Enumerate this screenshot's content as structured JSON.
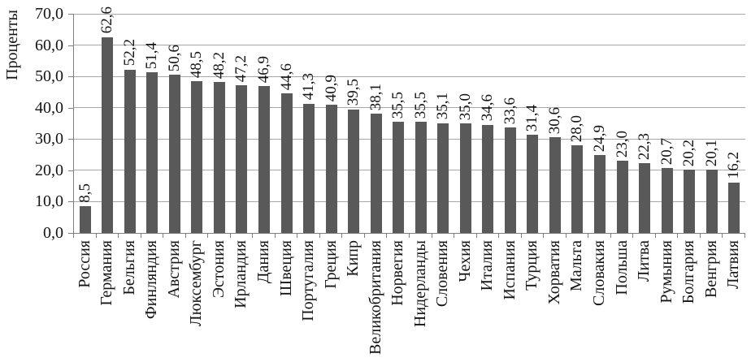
{
  "chart_data": {
    "type": "bar",
    "title": "",
    "ylabel": "Проценты",
    "ylim": [
      0,
      70
    ],
    "grid": true,
    "legend": false,
    "y_tick_labels": [
      "0,0",
      "10,0",
      "20,0",
      "30,0",
      "40,0",
      "50,0",
      "60,0",
      "70,0"
    ],
    "categories": [
      "Россия",
      "Германия",
      "Бельгия",
      "Финляндия",
      "Австрия",
      "Люксембург",
      "Эстония",
      "Ирландия",
      "Дания",
      "Швеция",
      "Португалия",
      "Греция",
      "Кипр",
      "Великобритания",
      "Норвегия",
      "Нидерланды",
      "Словения",
      "Чехия",
      "Италия",
      "Испания",
      "Турция",
      "Хорватия",
      "Мальта",
      "Словакия",
      "Польша",
      "Литва",
      "Румыния",
      "Болгария",
      "Венгрия",
      "Латвия"
    ],
    "values": [
      8.5,
      62.6,
      52.2,
      51.4,
      50.6,
      48.5,
      48.2,
      47.2,
      46.9,
      44.6,
      41.3,
      40.9,
      39.5,
      38.1,
      35.5,
      35.5,
      35.1,
      35.0,
      34.6,
      33.6,
      31.4,
      30.6,
      28.0,
      24.9,
      23.0,
      22.3,
      20.7,
      20.2,
      20.1,
      16.2
    ],
    "value_labels": [
      "8,5",
      "62,6",
      "52,2",
      "51,4",
      "50,6",
      "48,5",
      "48,2",
      "47,2",
      "46,9",
      "44,6",
      "41,3",
      "40,9",
      "39,5",
      "38,1",
      "35,5",
      "35,5",
      "35,1",
      "35,0",
      "34,6",
      "33,6",
      "31,4",
      "30,6",
      "28,0",
      "24,9",
      "23,0",
      "22,3",
      "20,7",
      "20,2",
      "20,1",
      "16,2"
    ],
    "bar_color": "#595959",
    "gridline_color": "#a8a8a8",
    "axis_color": "#7f7f7f",
    "text_color": "#141414"
  }
}
